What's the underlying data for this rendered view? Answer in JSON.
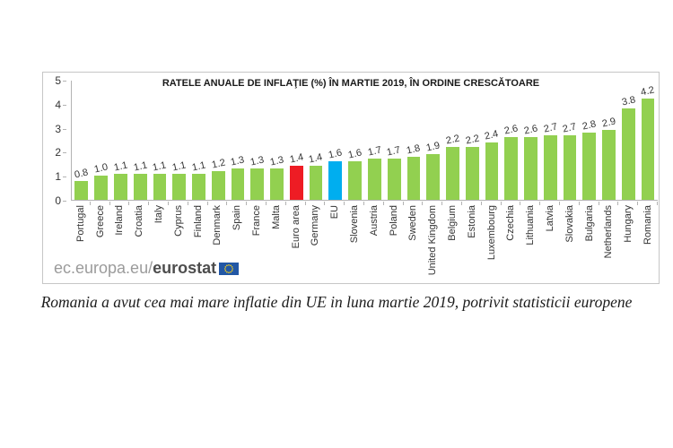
{
  "chart_data": {
    "type": "bar",
    "title": "RATELE ANUALE DE INFLAŢIE (%) ÎN MARTIE 2019, ÎN ORDINE CRESCĂTOARE",
    "categories": [
      "Portugal",
      "Greece",
      "Ireland",
      "Croatia",
      "Italy",
      "Cyprus",
      "Finland",
      "Denmark",
      "Spain",
      "France",
      "Malta",
      "Euro area",
      "Germany",
      "EU",
      "Slovenia",
      "Austria",
      "Poland",
      "Sweden",
      "United Kingdom",
      "Belgium",
      "Estonia",
      "Luxembourg",
      "Czechia",
      "Lithuania",
      "Latvia",
      "Slovakia",
      "Bulgaria",
      "Netherlands",
      "Hungary",
      "Romania"
    ],
    "values": [
      0.8,
      1.0,
      1.1,
      1.1,
      1.1,
      1.1,
      1.1,
      1.2,
      1.3,
      1.3,
      1.3,
      1.4,
      1.4,
      1.6,
      1.6,
      1.7,
      1.7,
      1.8,
      1.9,
      2.2,
      2.2,
      2.4,
      2.6,
      2.6,
      2.7,
      2.7,
      2.8,
      2.9,
      3.8,
      4.2
    ],
    "ylim": [
      0,
      5
    ],
    "yticks": [
      0,
      1,
      2,
      3,
      4,
      5
    ],
    "grid": false,
    "value_labels": true,
    "legend": "none",
    "xlabel": "",
    "ylabel": "",
    "bar_color_default": "#92d050",
    "highlights": [
      {
        "category": "Euro area",
        "color": "#ee1c24"
      },
      {
        "category": "EU",
        "color": "#00aeef"
      }
    ]
  },
  "footer_logo": {
    "prefix": "ec.europa.eu/",
    "bold": "eurostat",
    "flag_background": "#2257a5",
    "flag_stars": "#ffd617"
  },
  "caption": "Romania a avut cea mai mare inflatie din UE in luna martie 2019, potrivit statisticii europene"
}
